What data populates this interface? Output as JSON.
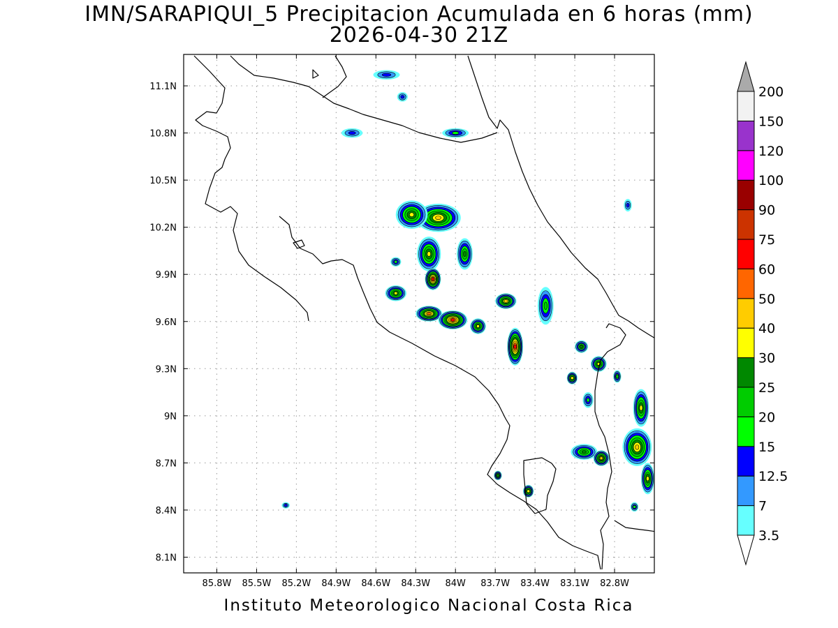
{
  "title": {
    "line1": "IMN/SARAPIQUI_5 Precipitacion Acumulada en 6 horas (mm)",
    "line2": "2026-04-30 21Z"
  },
  "footer": "Instituto Meteorologico Nacional Costa Rica",
  "map": {
    "lon_range": [
      -86.05,
      -82.5
    ],
    "lat_range": [
      8.0,
      11.3
    ],
    "lon_ticks": [
      {
        "value": -85.8,
        "label": "85.8W"
      },
      {
        "value": -85.5,
        "label": "85.5W"
      },
      {
        "value": -85.2,
        "label": "85.2W"
      },
      {
        "value": -84.9,
        "label": "84.9W"
      },
      {
        "value": -84.6,
        "label": "84.6W"
      },
      {
        "value": -84.3,
        "label": "84.3W"
      },
      {
        "value": -84.0,
        "label": "84W"
      },
      {
        "value": -83.7,
        "label": "83.7W"
      },
      {
        "value": -83.4,
        "label": "83.4W"
      },
      {
        "value": -83.1,
        "label": "83.1W"
      },
      {
        "value": -82.8,
        "label": "82.8W"
      }
    ],
    "lat_ticks": [
      {
        "value": 11.1,
        "label": "11.1N"
      },
      {
        "value": 10.8,
        "label": "10.8N"
      },
      {
        "value": 10.5,
        "label": "10.5N"
      },
      {
        "value": 10.2,
        "label": "10.2N"
      },
      {
        "value": 9.9,
        "label": "9.9N"
      },
      {
        "value": 9.6,
        "label": "9.6N"
      },
      {
        "value": 9.3,
        "label": "9.3N"
      },
      {
        "value": 9.0,
        "label": "9N"
      },
      {
        "value": 8.7,
        "label": "8.7N"
      },
      {
        "value": 8.4,
        "label": "8.4N"
      },
      {
        "value": 8.1,
        "label": "8.1N"
      }
    ],
    "grid": true
  },
  "legend": {
    "levels": [
      {
        "label": "3.5",
        "color": "#66ffff"
      },
      {
        "label": "7",
        "color": "#3399ff"
      },
      {
        "label": "12.5",
        "color": "#0000ff"
      },
      {
        "label": "15",
        "color": "#00ff00"
      },
      {
        "label": "20",
        "color": "#00cc00"
      },
      {
        "label": "25",
        "color": "#008800"
      },
      {
        "label": "30",
        "color": "#ffff00"
      },
      {
        "label": "40",
        "color": "#ffcc00"
      },
      {
        "label": "50",
        "color": "#ff6600"
      },
      {
        "label": "60",
        "color": "#ff0000"
      },
      {
        "label": "75",
        "color": "#cc3300"
      },
      {
        "label": "90",
        "color": "#990000"
      },
      {
        "label": "100",
        "color": "#ff00ff"
      },
      {
        "label": "120",
        "color": "#9933cc"
      },
      {
        "label": "150",
        "color": "#f2f2f2"
      },
      {
        "label": "200",
        "color": "#aaaaaa"
      }
    ]
  },
  "rain_cells": [
    {
      "lon": -84.13,
      "lat": 10.26,
      "rx": 0.17,
      "ry": 0.09,
      "peak": 7
    },
    {
      "lon": -84.33,
      "lat": 10.28,
      "rx": 0.12,
      "ry": 0.09,
      "peak": 6
    },
    {
      "lon": -84.2,
      "lat": 10.03,
      "rx": 0.09,
      "ry": 0.11,
      "peak": 6
    },
    {
      "lon": -84.17,
      "lat": 9.87,
      "rx": 0.06,
      "ry": 0.07,
      "peak": 9
    },
    {
      "lon": -84.2,
      "lat": 9.65,
      "rx": 0.1,
      "ry": 0.05,
      "peak": 8
    },
    {
      "lon": -84.02,
      "lat": 9.61,
      "rx": 0.11,
      "ry": 0.06,
      "peak": 9
    },
    {
      "lon": -83.83,
      "lat": 9.57,
      "rx": 0.06,
      "ry": 0.05,
      "peak": 6
    },
    {
      "lon": -83.62,
      "lat": 9.73,
      "rx": 0.08,
      "ry": 0.05,
      "peak": 7
    },
    {
      "lon": -83.55,
      "lat": 9.44,
      "rx": 0.06,
      "ry": 0.12,
      "peak": 9
    },
    {
      "lon": -83.93,
      "lat": 10.03,
      "rx": 0.06,
      "ry": 0.1,
      "peak": 5
    },
    {
      "lon": -84.45,
      "lat": 9.78,
      "rx": 0.08,
      "ry": 0.05,
      "peak": 6
    },
    {
      "lon": -83.32,
      "lat": 9.7,
      "rx": 0.06,
      "ry": 0.12,
      "peak": 4
    },
    {
      "lon": -83.05,
      "lat": 9.44,
      "rx": 0.05,
      "ry": 0.04,
      "peak": 5
    },
    {
      "lon": -82.92,
      "lat": 9.33,
      "rx": 0.06,
      "ry": 0.05,
      "peak": 6
    },
    {
      "lon": -83.12,
      "lat": 9.24,
      "rx": 0.04,
      "ry": 0.04,
      "peak": 6
    },
    {
      "lon": -82.6,
      "lat": 9.05,
      "rx": 0.06,
      "ry": 0.12,
      "peak": 6
    },
    {
      "lon": -82.63,
      "lat": 8.8,
      "rx": 0.11,
      "ry": 0.12,
      "peak": 7
    },
    {
      "lon": -82.55,
      "lat": 8.6,
      "rx": 0.05,
      "ry": 0.1,
      "peak": 6
    },
    {
      "lon": -83.03,
      "lat": 8.77,
      "rx": 0.1,
      "ry": 0.05,
      "peak": 5
    },
    {
      "lon": -82.9,
      "lat": 8.73,
      "rx": 0.06,
      "ry": 0.05,
      "peak": 7
    },
    {
      "lon": -83.45,
      "lat": 8.52,
      "rx": 0.04,
      "ry": 0.04,
      "peak": 6
    },
    {
      "lon": -84.0,
      "lat": 10.8,
      "rx": 0.1,
      "ry": 0.03,
      "peak": 3
    },
    {
      "lon": -84.52,
      "lat": 11.17,
      "rx": 0.1,
      "ry": 0.03,
      "peak": 2
    },
    {
      "lon": -84.78,
      "lat": 10.8,
      "rx": 0.08,
      "ry": 0.03,
      "peak": 2
    },
    {
      "lon": -84.45,
      "lat": 9.98,
      "rx": 0.04,
      "ry": 0.03,
      "peak": 3
    },
    {
      "lon": -82.65,
      "lat": 8.42,
      "rx": 0.03,
      "ry": 0.03,
      "peak": 3
    },
    {
      "lon": -82.7,
      "lat": 10.34,
      "rx": 0.03,
      "ry": 0.04,
      "peak": 2
    },
    {
      "lon": -85.28,
      "lat": 8.43,
      "rx": 0.03,
      "ry": 0.02,
      "peak": 2
    },
    {
      "lon": -83.68,
      "lat": 8.62,
      "rx": 0.03,
      "ry": 0.03,
      "peak": 5
    },
    {
      "lon": -84.4,
      "lat": 11.03,
      "rx": 0.04,
      "ry": 0.03,
      "peak": 2
    },
    {
      "lon": -82.78,
      "lat": 9.25,
      "rx": 0.03,
      "ry": 0.04,
      "peak": 4
    },
    {
      "lon": -83.0,
      "lat": 9.1,
      "rx": 0.04,
      "ry": 0.05,
      "peak": 3
    }
  ]
}
